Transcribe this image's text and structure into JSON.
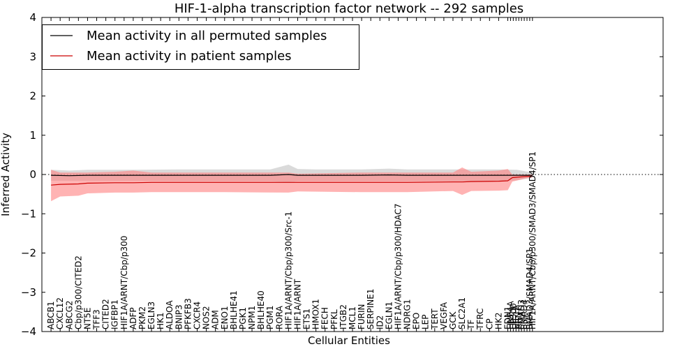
{
  "chart_data": {
    "type": "line",
    "title": "HIF-1-alpha transcription factor network -- 292 samples",
    "xlabel": "Cellular Entities",
    "ylabel": "Inferred Activity",
    "ylim": [
      -4,
      4
    ],
    "yticks": [
      "4",
      "3",
      "2",
      "1",
      "0",
      "−1",
      "−2",
      "−3",
      "−4"
    ],
    "ytick_values": [
      4,
      3,
      2,
      1,
      0,
      -1,
      -2,
      -3,
      -4
    ],
    "xlim": [
      0,
      68
    ],
    "reference_line_y": 0,
    "legend": {
      "placement": "top-left",
      "entries": [
        {
          "label": "Mean activity in all permuted samples",
          "color": "#000000"
        },
        {
          "label": "Mean activity in patient samples",
          "color": "#cc0000"
        }
      ]
    },
    "categories": [
      "ABCB1",
      "CXCL12",
      "ABCG2",
      "Cbp/p300/CITED2",
      "NT5E",
      "TFF3",
      "CITED2",
      "IGFBP1",
      "HIF1A/ARNT/Cbp/p300",
      "ADFP",
      "PKM2",
      "EGLN3",
      "HK1",
      "ALDOA",
      "BNIP3",
      "PFKFB3",
      "CXCR4",
      "NOS2",
      "ADM",
      "ENO1",
      "BHLHE41",
      "PGK1",
      "NPM1",
      "BHLHE40",
      "PGM1",
      "RORA",
      "HIF1A/ARNT/Cbp/p300/Src-1",
      "HIF1A/ARNT",
      "ETS1",
      "HMOX1",
      "FECH",
      "PFKL",
      "ITGB2",
      "MCL1",
      "FURIN",
      "SERPINE1",
      "ID2",
      "EGLN1",
      "HIF1A/ARNT/Cbp/p300/HDAC7",
      "NDRG1",
      "EPO",
      "LEP",
      "TERT",
      "VEGFA",
      "GCK",
      "SLC2A1",
      "TF",
      "TFRC",
      "CP",
      "HK2",
      "EDN1",
      "HNF4A",
      "EP300",
      "HIF1A",
      "ARNT",
      "SMAD3",
      "SMAD4",
      "SP1",
      "SMAD3/SMAD4/SP1",
      "HIF1A/ARNT/Cbp/p300/SMAD3/SMAD4/SP1"
    ],
    "category_x": [
      1,
      2,
      3,
      4,
      5,
      6,
      7,
      8,
      9,
      10,
      11,
      12,
      13,
      14,
      15,
      16,
      17,
      18,
      19,
      20,
      21,
      22,
      23,
      24,
      25,
      26,
      27,
      28,
      29,
      30,
      31,
      32,
      33,
      34,
      35,
      36,
      37,
      38,
      39,
      40,
      41,
      42,
      43,
      44,
      45,
      46,
      47,
      48,
      49,
      50,
      51,
      51.3,
      51.6,
      51.9,
      52.2,
      52.5,
      52.8,
      53.1,
      53.4,
      53.7
    ],
    "series": [
      {
        "name": "Mean activity in all permuted samples",
        "color": "#000000",
        "band_color": "#bbbbbb",
        "x": [
          1,
          3,
          5,
          10,
          15,
          20,
          25,
          27,
          28,
          30,
          35,
          38,
          40,
          45,
          50,
          52,
          53.7
        ],
        "values": [
          -0.02,
          -0.03,
          -0.02,
          -0.02,
          -0.02,
          -0.02,
          -0.02,
          0.0,
          -0.02,
          -0.02,
          -0.02,
          -0.01,
          -0.02,
          -0.02,
          -0.02,
          -0.02,
          -0.02
        ],
        "band_upper": [
          0.12,
          0.1,
          0.12,
          0.12,
          0.13,
          0.13,
          0.13,
          0.25,
          0.14,
          0.13,
          0.13,
          0.15,
          0.13,
          0.13,
          0.13,
          0.12,
          0.05
        ],
        "band_lower": [
          -0.16,
          -0.16,
          -0.16,
          -0.16,
          -0.17,
          -0.17,
          -0.17,
          -0.2,
          -0.17,
          -0.17,
          -0.17,
          -0.17,
          -0.17,
          -0.17,
          -0.17,
          -0.15,
          -0.08
        ]
      },
      {
        "name": "Mean activity in patient samples",
        "color": "#cc0000",
        "band_color": "#ff8080",
        "x": [
          1,
          2,
          4,
          5,
          8,
          10,
          12,
          20,
          27,
          28,
          35,
          40,
          45,
          46,
          47,
          50,
          51,
          51.5,
          53,
          53.7
        ],
        "values": [
          -0.27,
          -0.25,
          -0.24,
          -0.22,
          -0.21,
          -0.21,
          -0.2,
          -0.2,
          -0.2,
          -0.2,
          -0.2,
          -0.2,
          -0.19,
          -0.19,
          -0.18,
          -0.17,
          -0.16,
          -0.08,
          -0.05,
          -0.04
        ],
        "band_upper": [
          0.12,
          0.05,
          0.05,
          0.05,
          0.07,
          0.1,
          0.05,
          0.05,
          0.05,
          0.02,
          0.05,
          0.05,
          0.05,
          0.18,
          0.07,
          0.1,
          0.14,
          0.0,
          0.0,
          0.0
        ],
        "band_lower": [
          -0.68,
          -0.56,
          -0.54,
          -0.48,
          -0.46,
          -0.46,
          -0.45,
          -0.45,
          -0.46,
          -0.43,
          -0.45,
          -0.45,
          -0.42,
          -0.52,
          -0.42,
          -0.41,
          -0.4,
          -0.18,
          -0.1,
          -0.08
        ]
      }
    ]
  }
}
